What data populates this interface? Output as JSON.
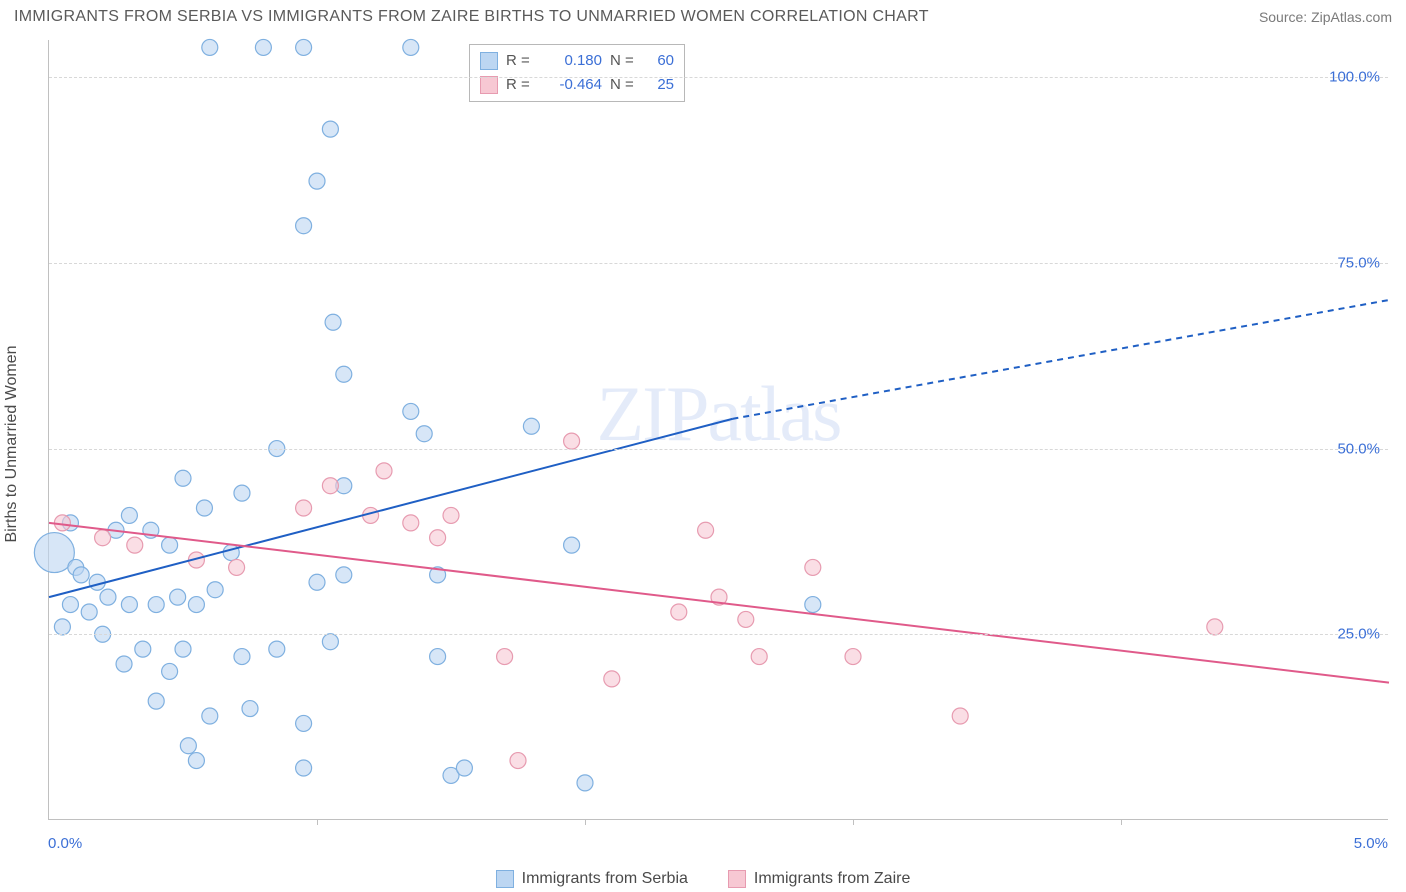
{
  "title": "IMMIGRANTS FROM SERBIA VS IMMIGRANTS FROM ZAIRE BIRTHS TO UNMARRIED WOMEN CORRELATION CHART",
  "source": "Source: ZipAtlas.com",
  "ylabel": "Births to Unmarried Women",
  "watermark": "ZIPatlas",
  "chart": {
    "type": "scatter",
    "xlim": [
      0,
      5
    ],
    "ylim": [
      0,
      105
    ],
    "x_tick_label_left": "0.0%",
    "x_tick_label_right": "5.0%",
    "y_ticks": [
      25,
      50,
      75,
      100
    ],
    "y_tick_labels": [
      "25.0%",
      "50.0%",
      "75.0%",
      "100.0%"
    ],
    "x_ticks": [
      1,
      2,
      3,
      4
    ],
    "grid_color": "#d8d8d8",
    "background_color": "#ffffff",
    "axis_color": "#c0c0c0",
    "tick_label_color": "#3b6fd6",
    "marker_radius": 8,
    "series": [
      {
        "name": "Immigrants from Serbia",
        "fill": "#bcd6f2",
        "stroke": "#7fb0e0",
        "fill_opacity": 0.6,
        "r_label": "0.180",
        "n_label": "60",
        "trend": {
          "x1": 0,
          "y1": 30,
          "x2": 2.55,
          "y2": 54,
          "stroke": "#1f5fc4",
          "width": 2,
          "dash_extend_to_x": 5,
          "dash_extend_to_y": 70
        },
        "points": [
          {
            "x": 0.02,
            "y": 36,
            "r": 20
          },
          {
            "x": 0.6,
            "y": 104
          },
          {
            "x": 0.8,
            "y": 104
          },
          {
            "x": 0.95,
            "y": 104
          },
          {
            "x": 1.35,
            "y": 104
          },
          {
            "x": 1.05,
            "y": 93
          },
          {
            "x": 1.0,
            "y": 86
          },
          {
            "x": 0.95,
            "y": 80
          },
          {
            "x": 1.06,
            "y": 67
          },
          {
            "x": 1.1,
            "y": 60
          },
          {
            "x": 1.35,
            "y": 55
          },
          {
            "x": 1.4,
            "y": 52
          },
          {
            "x": 0.85,
            "y": 50
          },
          {
            "x": 0.5,
            "y": 46
          },
          {
            "x": 0.72,
            "y": 44
          },
          {
            "x": 1.1,
            "y": 45
          },
          {
            "x": 0.25,
            "y": 39
          },
          {
            "x": 0.38,
            "y": 39
          },
          {
            "x": 0.1,
            "y": 34
          },
          {
            "x": 0.12,
            "y": 33
          },
          {
            "x": 0.18,
            "y": 32
          },
          {
            "x": 0.22,
            "y": 30
          },
          {
            "x": 0.08,
            "y": 29
          },
          {
            "x": 0.15,
            "y": 28
          },
          {
            "x": 0.3,
            "y": 29
          },
          {
            "x": 0.4,
            "y": 29
          },
          {
            "x": 0.55,
            "y": 29
          },
          {
            "x": 0.48,
            "y": 30
          },
          {
            "x": 0.62,
            "y": 31
          },
          {
            "x": 0.05,
            "y": 26
          },
          {
            "x": 0.2,
            "y": 25
          },
          {
            "x": 0.35,
            "y": 23
          },
          {
            "x": 0.5,
            "y": 23
          },
          {
            "x": 0.28,
            "y": 21
          },
          {
            "x": 0.45,
            "y": 20
          },
          {
            "x": 0.72,
            "y": 22
          },
          {
            "x": 0.85,
            "y": 23
          },
          {
            "x": 0.6,
            "y": 14
          },
          {
            "x": 0.75,
            "y": 15
          },
          {
            "x": 0.95,
            "y": 13
          },
          {
            "x": 0.55,
            "y": 8
          },
          {
            "x": 0.95,
            "y": 7
          },
          {
            "x": 1.0,
            "y": 32
          },
          {
            "x": 1.1,
            "y": 33
          },
          {
            "x": 1.05,
            "y": 24
          },
          {
            "x": 1.45,
            "y": 22
          },
          {
            "x": 1.5,
            "y": 6
          },
          {
            "x": 1.55,
            "y": 7
          },
          {
            "x": 1.45,
            "y": 33
          },
          {
            "x": 1.8,
            "y": 53
          },
          {
            "x": 1.95,
            "y": 37
          },
          {
            "x": 2.0,
            "y": 5
          },
          {
            "x": 2.85,
            "y": 29
          },
          {
            "x": 0.08,
            "y": 40
          },
          {
            "x": 0.3,
            "y": 41
          },
          {
            "x": 0.45,
            "y": 37
          },
          {
            "x": 0.58,
            "y": 42
          },
          {
            "x": 0.4,
            "y": 16
          },
          {
            "x": 0.68,
            "y": 36
          },
          {
            "x": 0.52,
            "y": 10
          }
        ]
      },
      {
        "name": "Immigrants from Zaire",
        "fill": "#f7c8d3",
        "stroke": "#e79bb0",
        "fill_opacity": 0.6,
        "r_label": "-0.464",
        "n_label": "25",
        "trend": {
          "x1": 0,
          "y1": 40,
          "x2": 5,
          "y2": 18.5,
          "stroke": "#e05a8a",
          "width": 2
        },
        "points": [
          {
            "x": 0.05,
            "y": 40
          },
          {
            "x": 0.2,
            "y": 38
          },
          {
            "x": 0.32,
            "y": 37
          },
          {
            "x": 0.7,
            "y": 34
          },
          {
            "x": 0.95,
            "y": 42
          },
          {
            "x": 1.05,
            "y": 45
          },
          {
            "x": 1.25,
            "y": 47
          },
          {
            "x": 1.2,
            "y": 41
          },
          {
            "x": 1.35,
            "y": 40
          },
          {
            "x": 1.45,
            "y": 38
          },
          {
            "x": 1.5,
            "y": 41
          },
          {
            "x": 1.7,
            "y": 22
          },
          {
            "x": 1.75,
            "y": 8
          },
          {
            "x": 1.95,
            "y": 51
          },
          {
            "x": 2.1,
            "y": 19
          },
          {
            "x": 2.45,
            "y": 39
          },
          {
            "x": 2.5,
            "y": 30
          },
          {
            "x": 2.6,
            "y": 27
          },
          {
            "x": 2.65,
            "y": 22
          },
          {
            "x": 2.85,
            "y": 34
          },
          {
            "x": 3.0,
            "y": 22
          },
          {
            "x": 3.4,
            "y": 14
          },
          {
            "x": 4.35,
            "y": 26
          },
          {
            "x": 2.35,
            "y": 28
          },
          {
            "x": 0.55,
            "y": 35
          }
        ]
      }
    ]
  },
  "stats_box": {
    "r_prefix": "R =",
    "n_prefix": "N ="
  },
  "legend": {
    "serbia": "Immigrants from Serbia",
    "zaire": "Immigrants from Zaire"
  }
}
